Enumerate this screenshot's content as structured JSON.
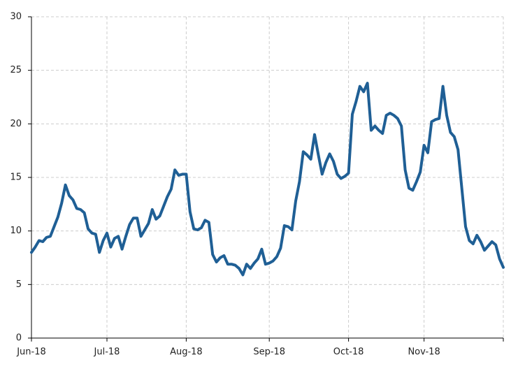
{
  "chart_data": {
    "type": "line",
    "categories": [
      "Jun-18",
      null,
      null,
      null,
      null,
      null,
      null,
      null,
      null,
      null,
      null,
      null,
      null,
      null,
      null,
      null,
      null,
      null,
      null,
      null,
      "Jul-18",
      null,
      null,
      null,
      null,
      null,
      null,
      null,
      null,
      null,
      null,
      null,
      null,
      null,
      null,
      null,
      null,
      null,
      null,
      null,
      null,
      "Aug-18",
      null,
      null,
      null,
      null,
      null,
      null,
      null,
      null,
      null,
      null,
      null,
      null,
      null,
      null,
      null,
      null,
      null,
      null,
      null,
      null,
      null,
      "Sep-18",
      null,
      null,
      null,
      null,
      null,
      null,
      null,
      null,
      null,
      null,
      null,
      null,
      null,
      null,
      null,
      null,
      null,
      null,
      null,
      null,
      "Oct-18",
      null,
      null,
      null,
      null,
      null,
      null,
      null,
      null,
      null,
      null,
      null,
      null,
      null,
      null,
      null,
      null,
      null,
      null,
      null,
      "Nov-18",
      null,
      null,
      null,
      null,
      null,
      null,
      null,
      null,
      null,
      null,
      null,
      null,
      null,
      null,
      null,
      null,
      null,
      null,
      null,
      null,
      null
    ],
    "series": [
      {
        "color": "#1f5f95",
        "values": [
          8.0,
          8.5,
          9.1,
          9.0,
          9.4,
          9.5,
          10.4,
          11.3,
          12.6,
          14.3,
          13.3,
          12.9,
          12.1,
          12.0,
          11.7,
          10.2,
          9.8,
          9.7,
          8.0,
          9.1,
          9.8,
          8.5,
          9.3,
          9.5,
          8.3,
          9.5,
          10.6,
          11.2,
          11.2,
          9.5,
          10.1,
          10.7,
          12.0,
          11.1,
          11.4,
          12.3,
          13.2,
          13.9,
          15.7,
          15.2,
          15.3,
          15.3,
          11.8,
          10.2,
          10.1,
          10.3,
          11.0,
          10.8,
          7.8,
          7.1,
          7.5,
          7.7,
          6.9,
          6.9,
          6.8,
          6.5,
          5.9,
          6.9,
          6.5,
          7.0,
          7.4,
          8.3,
          6.9,
          7.0,
          7.2,
          7.6,
          8.4,
          10.5,
          10.4,
          10.1,
          12.8,
          14.6,
          17.4,
          17.1,
          16.7,
          19.0,
          17.1,
          15.3,
          16.4,
          17.2,
          16.5,
          15.3,
          14.9,
          15.1,
          15.4,
          20.9,
          22.1,
          23.5,
          23.0,
          23.8,
          19.4,
          19.8,
          19.4,
          19.1,
          20.8,
          21.0,
          20.8,
          20.5,
          19.8,
          15.7,
          14.0,
          13.8,
          14.6,
          15.5,
          18.0,
          17.3,
          20.2,
          20.4,
          20.5,
          23.5,
          20.8,
          19.2,
          18.8,
          17.6,
          14.0,
          10.4,
          9.1,
          8.8,
          9.6,
          9.0,
          8.2,
          8.6,
          9.0,
          8.7,
          7.4,
          6.6
        ]
      }
    ],
    "ylim": [
      0,
      30
    ],
    "yticks": [
      0,
      5,
      10,
      15,
      20,
      25,
      30
    ],
    "grid": true
  }
}
